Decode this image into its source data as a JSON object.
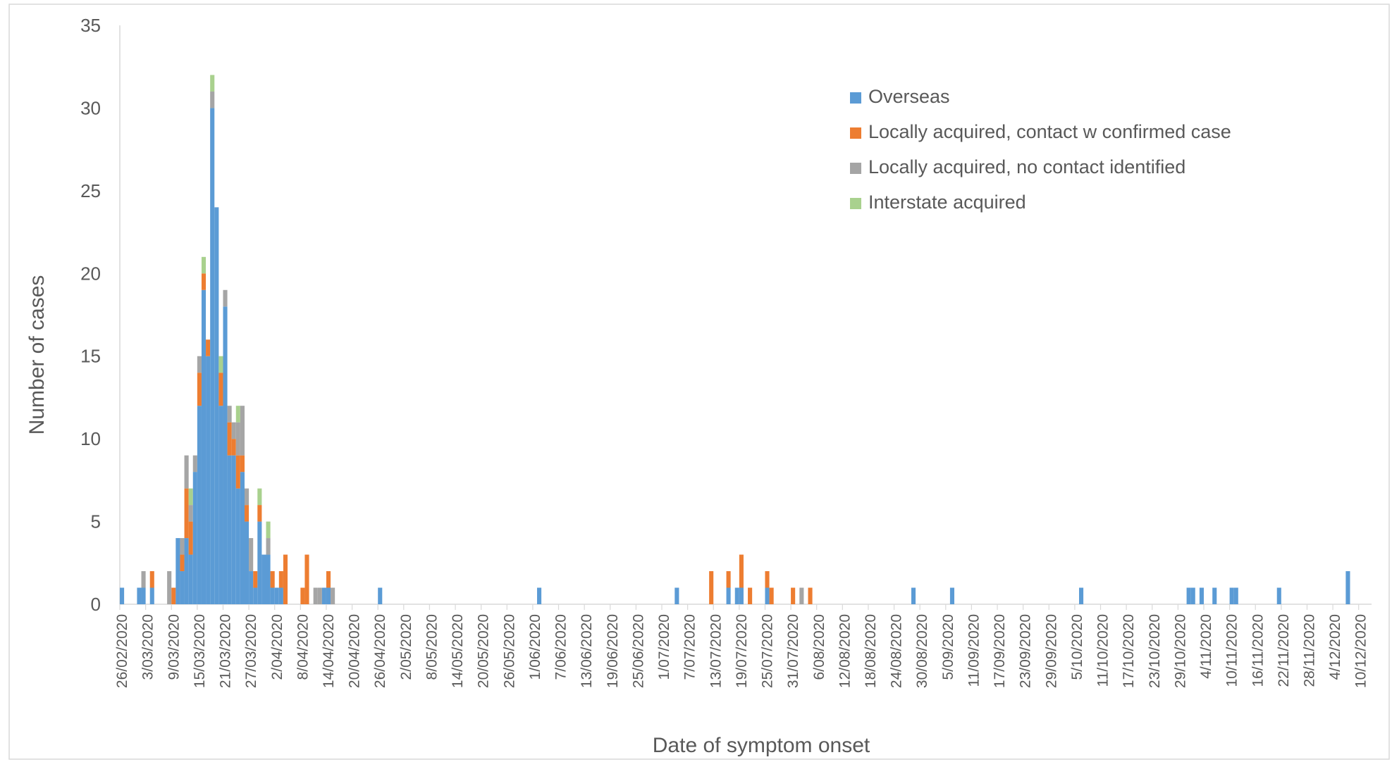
{
  "chart_data": {
    "type": "bar",
    "stacked": true,
    "title": "",
    "xlabel": "Date of symptom onset",
    "ylabel": "Number of cases",
    "ylim": [
      0,
      35
    ],
    "yticks": [
      "0",
      "5",
      "10",
      "15",
      "20",
      "25",
      "30",
      "35"
    ],
    "grid": false,
    "legend_position": "top-right",
    "x_start": "2020-02-26",
    "x_end": "2020-12-12",
    "x_tick_labels": [
      "26/02/2020",
      "3/03/2020",
      "9/03/2020",
      "15/03/2020",
      "21/03/2020",
      "27/03/2020",
      "2/04/2020",
      "8/04/2020",
      "14/04/2020",
      "20/04/2020",
      "26/04/2020",
      "2/05/2020",
      "8/05/2020",
      "14/05/2020",
      "20/05/2020",
      "26/05/2020",
      "1/06/2020",
      "7/06/2020",
      "13/06/2020",
      "19/06/2020",
      "25/06/2020",
      "1/07/2020",
      "7/07/2020",
      "13/07/2020",
      "19/07/2020",
      "25/07/2020",
      "31/07/2020",
      "6/08/2020",
      "12/08/2020",
      "18/08/2020",
      "24/08/2020",
      "30/08/2020",
      "5/09/2020",
      "11/09/2020",
      "17/09/2020",
      "23/09/2020",
      "29/09/2020",
      "5/10/2020",
      "11/10/2020",
      "17/10/2020",
      "23/10/2020",
      "29/10/2020",
      "4/11/2020",
      "10/11/2020",
      "16/11/2020",
      "22/11/2020",
      "28/11/2020",
      "4/12/2020",
      "10/12/2020"
    ],
    "series": [
      {
        "name": "Overseas",
        "color": "#5b9bd5"
      },
      {
        "name": "Locally acquired, contact w confirmed case",
        "color": "#ed7d31"
      },
      {
        "name": "Locally acquired, no contact identified",
        "color": "#a5a5a5"
      },
      {
        "name": "Interstate acquired",
        "color": "#a9d18e"
      }
    ],
    "data": [
      {
        "date": "2020-02-26",
        "values": [
          1,
          0,
          0,
          0
        ]
      },
      {
        "date": "2020-03-01",
        "values": [
          1,
          0,
          0,
          0
        ]
      },
      {
        "date": "2020-03-02",
        "values": [
          1,
          0,
          1,
          0
        ]
      },
      {
        "date": "2020-03-04",
        "values": [
          1,
          1,
          0,
          0
        ]
      },
      {
        "date": "2020-03-08",
        "values": [
          0,
          0,
          2,
          0
        ]
      },
      {
        "date": "2020-03-09",
        "values": [
          0,
          1,
          0,
          0
        ]
      },
      {
        "date": "2020-03-10",
        "values": [
          4,
          0,
          0,
          0
        ]
      },
      {
        "date": "2020-03-11",
        "values": [
          2,
          1,
          1,
          0
        ]
      },
      {
        "date": "2020-03-12",
        "values": [
          4,
          3,
          2,
          0
        ]
      },
      {
        "date": "2020-03-13",
        "values": [
          3,
          2,
          1,
          1
        ]
      },
      {
        "date": "2020-03-14",
        "values": [
          8,
          0,
          1,
          0
        ]
      },
      {
        "date": "2020-03-15",
        "values": [
          12,
          2,
          1,
          0
        ]
      },
      {
        "date": "2020-03-16",
        "values": [
          19,
          1,
          0,
          1
        ]
      },
      {
        "date": "2020-03-17",
        "values": [
          15,
          1,
          0,
          0
        ]
      },
      {
        "date": "2020-03-18",
        "values": [
          30,
          0,
          1,
          1
        ]
      },
      {
        "date": "2020-03-19",
        "values": [
          24,
          0,
          0,
          0
        ]
      },
      {
        "date": "2020-03-20",
        "values": [
          12,
          2,
          0,
          1
        ]
      },
      {
        "date": "2020-03-21",
        "values": [
          18,
          0,
          1,
          0
        ]
      },
      {
        "date": "2020-03-22",
        "values": [
          9,
          2,
          1,
          0
        ]
      },
      {
        "date": "2020-03-23",
        "values": [
          9,
          1,
          1,
          0
        ]
      },
      {
        "date": "2020-03-24",
        "values": [
          7,
          2,
          2,
          1
        ]
      },
      {
        "date": "2020-03-25",
        "values": [
          8,
          1,
          3,
          0
        ]
      },
      {
        "date": "2020-03-26",
        "values": [
          5,
          1,
          1,
          0
        ]
      },
      {
        "date": "2020-03-27",
        "values": [
          2,
          0,
          2,
          0
        ]
      },
      {
        "date": "2020-03-28",
        "values": [
          1,
          1,
          0,
          0
        ]
      },
      {
        "date": "2020-03-29",
        "values": [
          5,
          1,
          0,
          1
        ]
      },
      {
        "date": "2020-03-30",
        "values": [
          3,
          0,
          0,
          0
        ]
      },
      {
        "date": "2020-03-31",
        "values": [
          3,
          0,
          1,
          1
        ]
      },
      {
        "date": "2020-04-01",
        "values": [
          1,
          1,
          0,
          0
        ]
      },
      {
        "date": "2020-04-02",
        "values": [
          1,
          0,
          0,
          0
        ]
      },
      {
        "date": "2020-04-03",
        "values": [
          1,
          1,
          0,
          0
        ]
      },
      {
        "date": "2020-04-04",
        "values": [
          0,
          3,
          0,
          0
        ]
      },
      {
        "date": "2020-04-08",
        "values": [
          0,
          1,
          0,
          0
        ]
      },
      {
        "date": "2020-04-09",
        "values": [
          0,
          3,
          0,
          0
        ]
      },
      {
        "date": "2020-04-11",
        "values": [
          0,
          0,
          1,
          0
        ]
      },
      {
        "date": "2020-04-12",
        "values": [
          0,
          0,
          1,
          0
        ]
      },
      {
        "date": "2020-04-13",
        "values": [
          1,
          0,
          0,
          0
        ]
      },
      {
        "date": "2020-04-14",
        "values": [
          1,
          1,
          0,
          0
        ]
      },
      {
        "date": "2020-04-15",
        "values": [
          0,
          0,
          1,
          0
        ]
      },
      {
        "date": "2020-04-26",
        "values": [
          1,
          0,
          0,
          0
        ]
      },
      {
        "date": "2020-06-02",
        "values": [
          1,
          0,
          0,
          0
        ]
      },
      {
        "date": "2020-07-04",
        "values": [
          1,
          0,
          0,
          0
        ]
      },
      {
        "date": "2020-07-12",
        "values": [
          0,
          2,
          0,
          0
        ]
      },
      {
        "date": "2020-07-16",
        "values": [
          1,
          1,
          0,
          0
        ]
      },
      {
        "date": "2020-07-18",
        "values": [
          1,
          0,
          0,
          0
        ]
      },
      {
        "date": "2020-07-19",
        "values": [
          1,
          2,
          0,
          0
        ]
      },
      {
        "date": "2020-07-21",
        "values": [
          0,
          1,
          0,
          0
        ]
      },
      {
        "date": "2020-07-25",
        "values": [
          1,
          1,
          0,
          0
        ]
      },
      {
        "date": "2020-07-26",
        "values": [
          0,
          1,
          0,
          0
        ]
      },
      {
        "date": "2020-07-31",
        "values": [
          0,
          1,
          0,
          0
        ]
      },
      {
        "date": "2020-08-02",
        "values": [
          0,
          0,
          1,
          0
        ]
      },
      {
        "date": "2020-08-04",
        "values": [
          0,
          1,
          0,
          0
        ]
      },
      {
        "date": "2020-08-28",
        "values": [
          1,
          0,
          0,
          0
        ]
      },
      {
        "date": "2020-09-06",
        "values": [
          1,
          0,
          0,
          0
        ]
      },
      {
        "date": "2020-10-06",
        "values": [
          1,
          0,
          0,
          0
        ]
      },
      {
        "date": "2020-10-31",
        "values": [
          1,
          0,
          0,
          0
        ]
      },
      {
        "date": "2020-11-01",
        "values": [
          1,
          0,
          0,
          0
        ]
      },
      {
        "date": "2020-11-03",
        "values": [
          1,
          0,
          0,
          0
        ]
      },
      {
        "date": "2020-11-06",
        "values": [
          1,
          0,
          0,
          0
        ]
      },
      {
        "date": "2020-11-10",
        "values": [
          1,
          0,
          0,
          0
        ]
      },
      {
        "date": "2020-11-11",
        "values": [
          1,
          0,
          0,
          0
        ]
      },
      {
        "date": "2020-11-21",
        "values": [
          1,
          0,
          0,
          0
        ]
      },
      {
        "date": "2020-12-07",
        "values": [
          2,
          0,
          0,
          0
        ]
      }
    ]
  }
}
